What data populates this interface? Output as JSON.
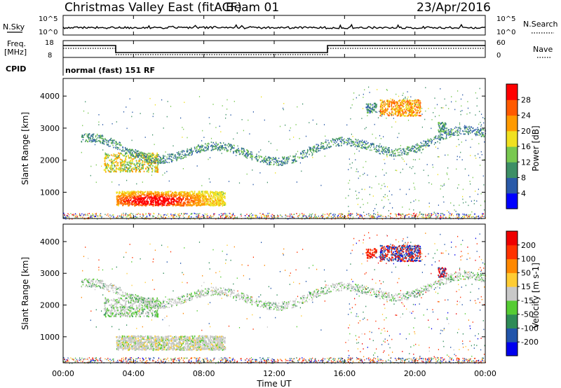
{
  "header": {
    "station": "Christmas Valley East (fitACF)",
    "beam": "Beam 01",
    "date": "23/Apr/2016"
  },
  "top_panels": {
    "nsky_label": "N.Sky",
    "nsky_ticks": [
      "10^5",
      "10^0"
    ],
    "nsearch_label": "N.Search",
    "nsearch_ticks": [
      "10^5",
      "10^0"
    ],
    "freq_label_1": "Freq.",
    "freq_label_2": "[MHz]",
    "freq_ticks": [
      "18",
      "8"
    ],
    "nave_label": "Nave",
    "nave_ticks": [
      "60",
      "0"
    ],
    "cpid_label": "CPID",
    "cpid_value": "normal (fast) 151 RF"
  },
  "colors": {
    "power_scale": [
      "#0000ff",
      "#2a5aa8",
      "#3d8f66",
      "#78c850",
      "#f0e020",
      "#ff9a00",
      "#ff5a00",
      "#ff0000"
    ],
    "velocity_scale": [
      "#0000ee",
      "#2255aa",
      "#2e8b57",
      "#55cc33",
      "#c8c8c8",
      "#ffcc33",
      "#ff8800",
      "#ff3300",
      "#ee0000"
    ]
  },
  "chart_data": [
    {
      "type": "heatmap",
      "panel": "power",
      "ylabel": "Slant Range [km]",
      "xlabel": "",
      "x_ticks": [
        "00:00",
        "04:00",
        "08:00",
        "12:00",
        "16:00",
        "20:00",
        "00:00"
      ],
      "xlim_hours": [
        0,
        24
      ],
      "y_ticks": [
        1000,
        2000,
        3000,
        4000
      ],
      "ylim_km": [
        180,
        4550
      ],
      "colorbar": {
        "label": "Power [dB]",
        "ticks": [
          "28",
          "24",
          "20",
          "16",
          "12",
          "8",
          "4"
        ],
        "range": [
          0,
          30
        ]
      },
      "features": [
        {
          "name": "near-range band",
          "hours": [
            3.0,
            9.2
          ],
          "range_km": [
            600,
            1050
          ],
          "value_db": [
            14,
            30
          ]
        },
        {
          "name": "upper echo band",
          "hours": [
            2.5,
            5.3
          ],
          "range_km": [
            1650,
            2250
          ],
          "value_db": [
            12,
            22
          ]
        },
        {
          "name": "high-range echoes",
          "hours": [
            18.0,
            20.3
          ],
          "range_km": [
            3400,
            3900
          ],
          "value_db": [
            16,
            24
          ]
        }
      ]
    },
    {
      "type": "heatmap",
      "panel": "velocity",
      "ylabel": "Slant Range [km]",
      "xlabel": "Time UT",
      "x_ticks": [
        "00:00",
        "04:00",
        "08:00",
        "12:00",
        "16:00",
        "20:00",
        "00:00"
      ],
      "xlim_hours": [
        0,
        24
      ],
      "y_ticks": [
        1000,
        2000,
        3000,
        4000
      ],
      "ylim_km": [
        180,
        4550
      ],
      "colorbar": {
        "label": "Velocity [m s-1]",
        "ticks": [
          "200",
          "100",
          "50",
          "15",
          "-15",
          "-50",
          "-100",
          "-200"
        ],
        "range": [
          -250,
          250
        ]
      },
      "features": [
        {
          "name": "near-range band",
          "hours": [
            3.0,
            9.2
          ],
          "range_km": [
            650,
            1050
          ],
          "value_ms": [
            -15,
            50
          ]
        },
        {
          "name": "high-range echoes",
          "hours": [
            18.0,
            20.3
          ],
          "range_km": [
            3300,
            3900
          ],
          "value_ms": [
            -250,
            250
          ]
        }
      ]
    }
  ]
}
